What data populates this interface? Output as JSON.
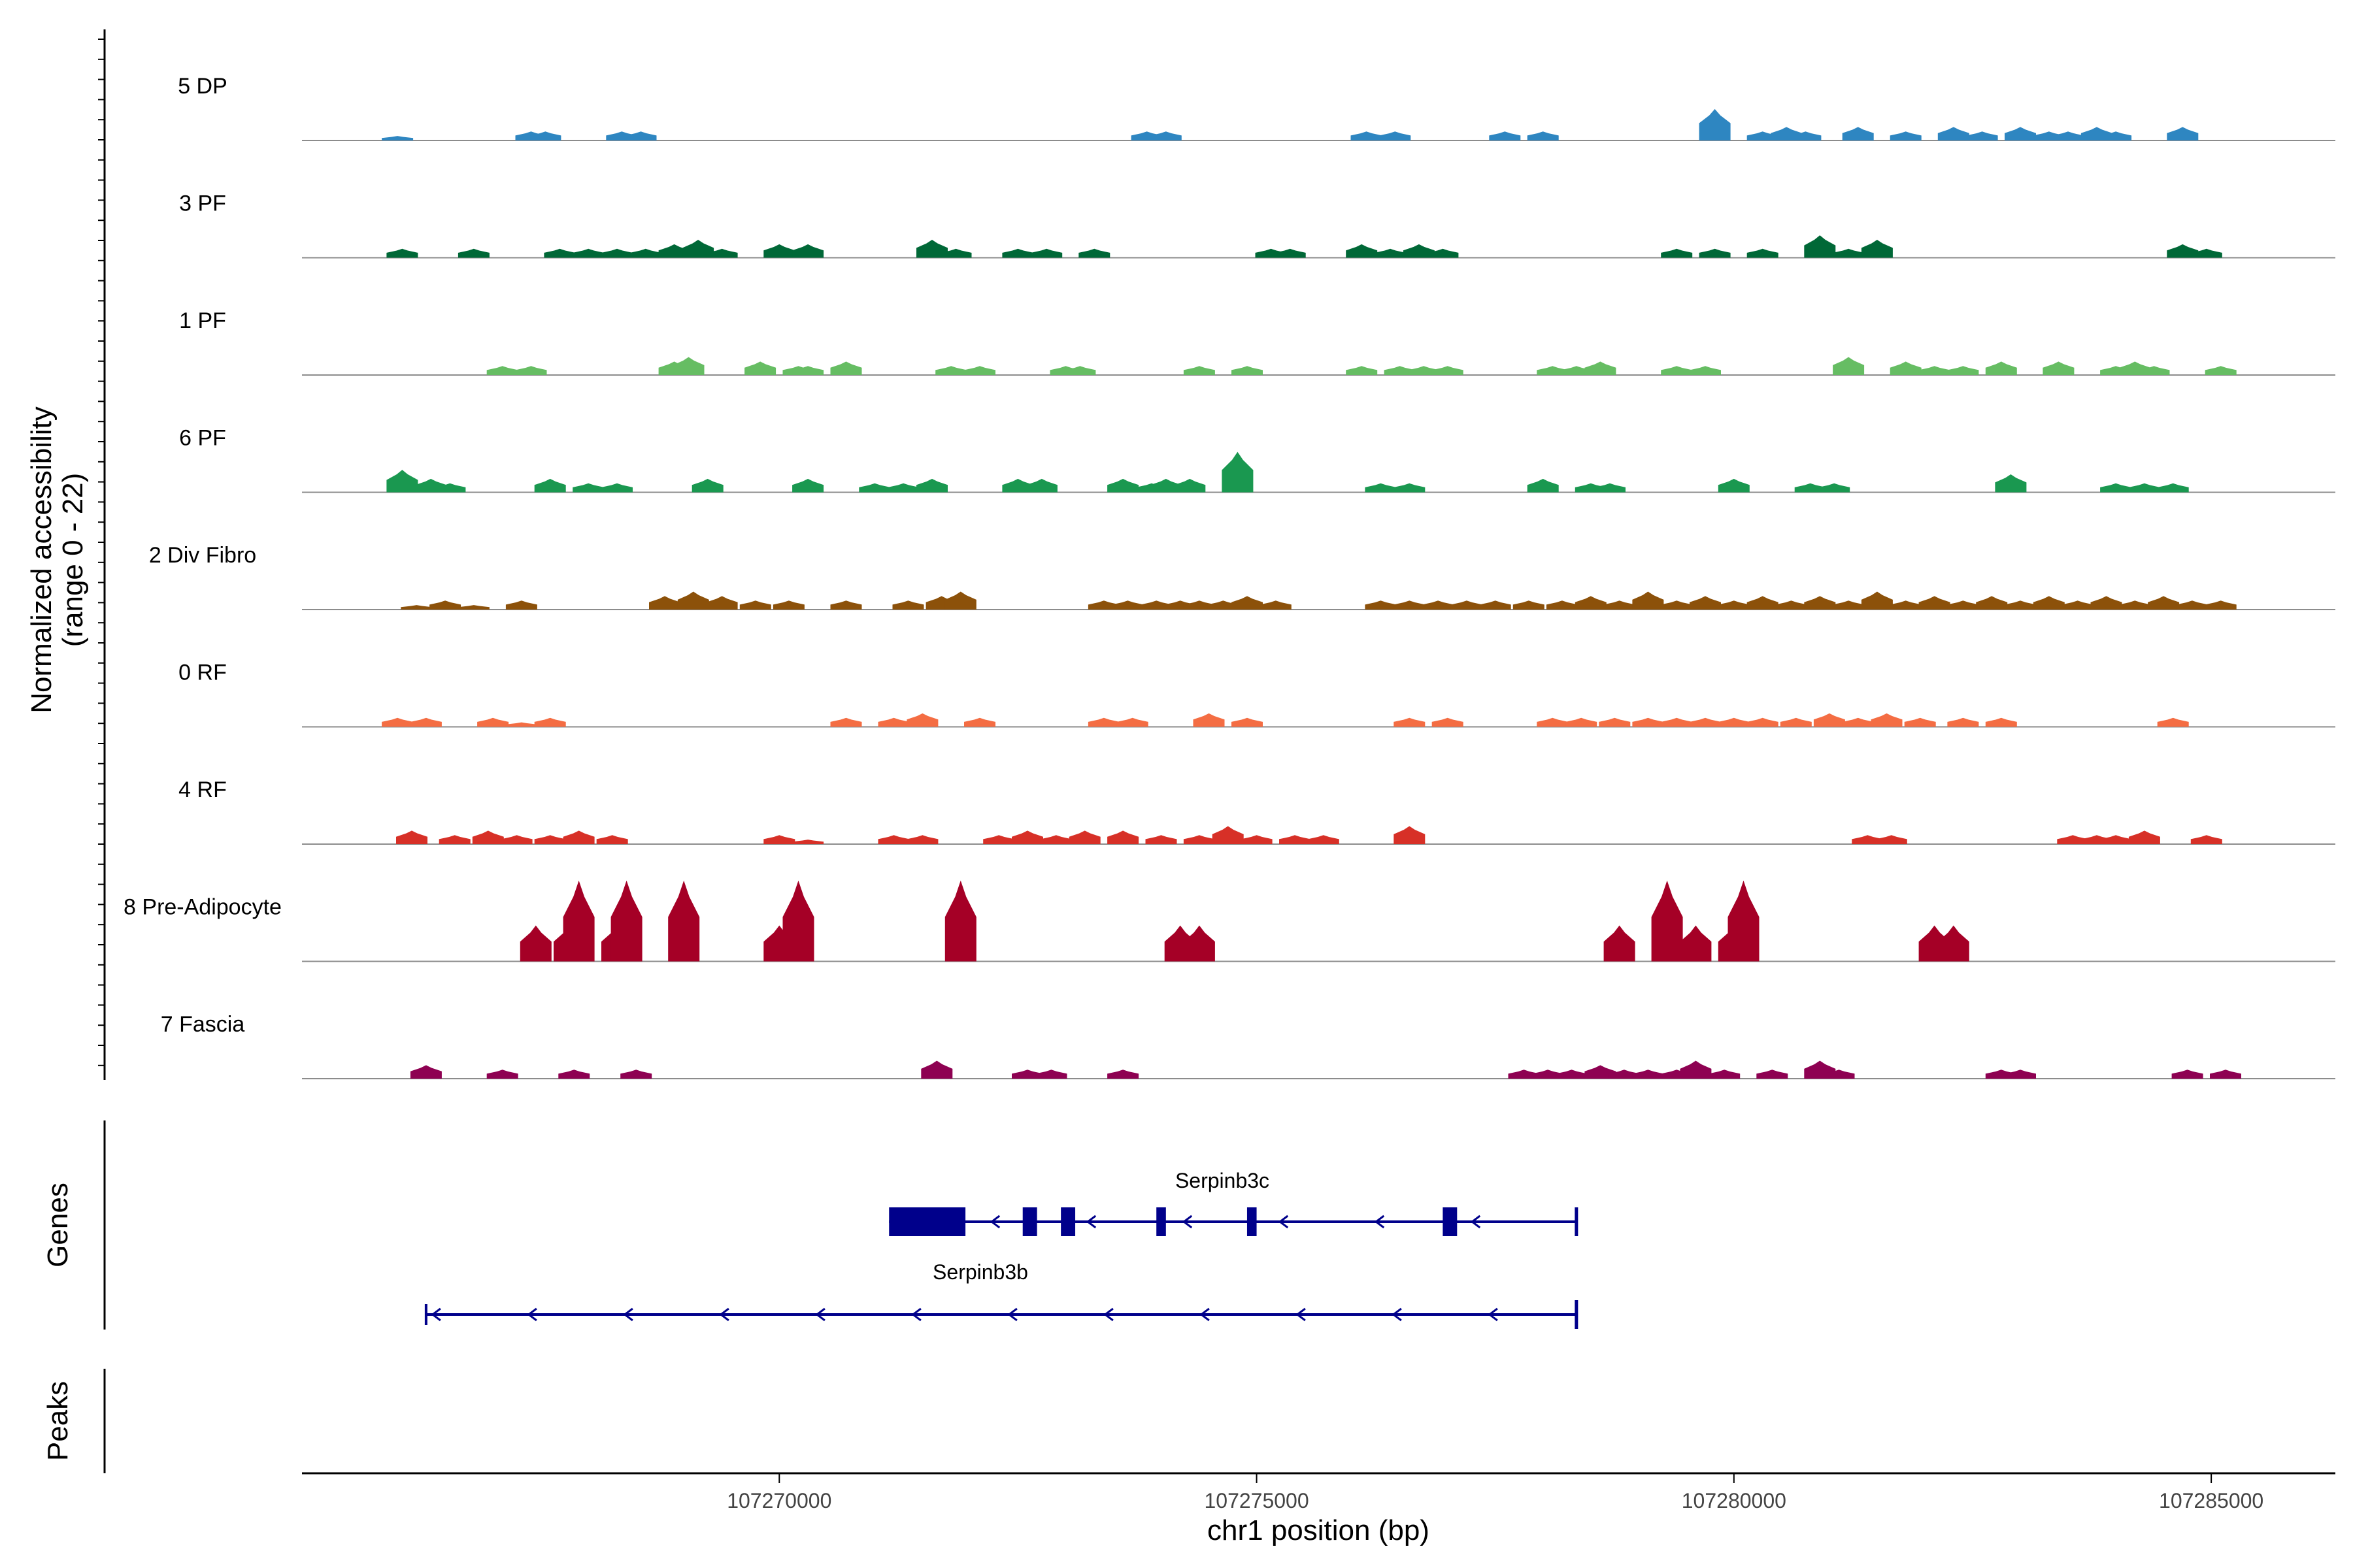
{
  "chart_data": {
    "type": "coverage",
    "y_axis_label_line1": "Normalized accessibility",
    "y_axis_label_line2": "(range 0 - 22)",
    "y_range": [
      0,
      22
    ],
    "x_axis_label": "chr1 position (bp)",
    "xlim": [
      107265000,
      107286300
    ],
    "x_ticks": [
      107270000,
      107275000,
      107280000,
      107285000
    ],
    "x_tick_labels": [
      "107270000",
      "107275000",
      "107280000",
      "107285000"
    ],
    "tracks": [
      {
        "name": "5 DP",
        "color": "#2E86C1",
        "peaks": [
          [
            107266000,
            1
          ],
          [
            107267400,
            2
          ],
          [
            107267550,
            2
          ],
          [
            107268350,
            2
          ],
          [
            107268550,
            2
          ],
          [
            107273850,
            2
          ],
          [
            107274050,
            2
          ],
          [
            107276150,
            2
          ],
          [
            107276450,
            2
          ],
          [
            107277600,
            2
          ],
          [
            107278000,
            2
          ],
          [
            107279800,
            7
          ],
          [
            107280300,
            2
          ],
          [
            107280550,
            3
          ],
          [
            107280750,
            2
          ],
          [
            107281300,
            3
          ],
          [
            107281800,
            2
          ],
          [
            107282300,
            3
          ],
          [
            107282600,
            2
          ],
          [
            107283000,
            3
          ],
          [
            107283300,
            2
          ],
          [
            107283500,
            2
          ],
          [
            107283800,
            3
          ],
          [
            107284000,
            2
          ],
          [
            107284700,
            3
          ]
        ]
      },
      {
        "name": "3 PF",
        "color": "#006837",
        "peaks": [
          [
            107266050,
            2
          ],
          [
            107266800,
            2
          ],
          [
            107267700,
            2
          ],
          [
            107268000,
            2
          ],
          [
            107268300,
            2
          ],
          [
            107268600,
            2
          ],
          [
            107268900,
            3
          ],
          [
            107269150,
            4
          ],
          [
            107269400,
            2
          ],
          [
            107270000,
            3
          ],
          [
            107270300,
            3
          ],
          [
            107271600,
            4
          ],
          [
            107271850,
            2
          ],
          [
            107272500,
            2
          ],
          [
            107272800,
            2
          ],
          [
            107273300,
            2
          ],
          [
            107275150,
            2
          ],
          [
            107275350,
            2
          ],
          [
            107276100,
            3
          ],
          [
            107276400,
            2
          ],
          [
            107276700,
            3
          ],
          [
            107276950,
            2
          ],
          [
            107279400,
            2
          ],
          [
            107279800,
            2
          ],
          [
            107280300,
            2
          ],
          [
            107280900,
            5
          ],
          [
            107281200,
            2
          ],
          [
            107281500,
            4
          ],
          [
            107284700,
            3
          ],
          [
            107284950,
            2
          ]
        ]
      },
      {
        "name": "1 PF",
        "color": "#66BD63",
        "peaks": [
          [
            107267100,
            2
          ],
          [
            107267400,
            2
          ],
          [
            107268900,
            3
          ],
          [
            107269050,
            4
          ],
          [
            107269800,
            3
          ],
          [
            107270200,
            2
          ],
          [
            107270300,
            2
          ],
          [
            107270700,
            3
          ],
          [
            107271800,
            2
          ],
          [
            107272100,
            2
          ],
          [
            107273000,
            2
          ],
          [
            107273150,
            2
          ],
          [
            107274400,
            2
          ],
          [
            107274900,
            2
          ],
          [
            107276100,
            2
          ],
          [
            107276500,
            2
          ],
          [
            107276750,
            2
          ],
          [
            107277000,
            2
          ],
          [
            107278100,
            2
          ],
          [
            107278350,
            2
          ],
          [
            107278600,
            3
          ],
          [
            107279400,
            2
          ],
          [
            107279700,
            2
          ],
          [
            107281200,
            4
          ],
          [
            107281800,
            3
          ],
          [
            107282100,
            2
          ],
          [
            107282400,
            2
          ],
          [
            107282800,
            3
          ],
          [
            107283400,
            3
          ],
          [
            107284000,
            2
          ],
          [
            107284200,
            3
          ],
          [
            107284400,
            2
          ],
          [
            107285100,
            2
          ]
        ]
      },
      {
        "name": "6 PF",
        "color": "#1A9850",
        "peaks": [
          [
            107266050,
            5
          ],
          [
            107266350,
            3
          ],
          [
            107266550,
            2
          ],
          [
            107267600,
            3
          ],
          [
            107268000,
            2
          ],
          [
            107268300,
            2
          ],
          [
            107269250,
            3
          ],
          [
            107270300,
            3
          ],
          [
            107271000,
            2
          ],
          [
            107271300,
            2
          ],
          [
            107271600,
            3
          ],
          [
            107272500,
            3
          ],
          [
            107272750,
            3
          ],
          [
            107273600,
            3
          ],
          [
            107273900,
            2
          ],
          [
            107274050,
            3
          ],
          [
            107274300,
            3
          ],
          [
            107274800,
            9
          ],
          [
            107276300,
            2
          ],
          [
            107276600,
            2
          ],
          [
            107278000,
            3
          ],
          [
            107278500,
            2
          ],
          [
            107278700,
            2
          ],
          [
            107280000,
            3
          ],
          [
            107280800,
            2
          ],
          [
            107281050,
            2
          ],
          [
            107282900,
            4
          ],
          [
            107284000,
            2
          ],
          [
            107284300,
            2
          ],
          [
            107284600,
            2
          ]
        ]
      },
      {
        "name": "2 Div Fibro",
        "color": "#8C510A",
        "peaks": [
          [
            107266200,
            1
          ],
          [
            107266500,
            2
          ],
          [
            107266800,
            1
          ],
          [
            107267300,
            2
          ],
          [
            107268800,
            3
          ],
          [
            107269100,
            4
          ],
          [
            107269400,
            3
          ],
          [
            107269750,
            2
          ],
          [
            107270100,
            2
          ],
          [
            107270700,
            2
          ],
          [
            107271350,
            2
          ],
          [
            107271700,
            3
          ],
          [
            107271900,
            4
          ],
          [
            107273400,
            2
          ],
          [
            107273650,
            2
          ],
          [
            107273950,
            2
          ],
          [
            107274200,
            2
          ],
          [
            107274400,
            2
          ],
          [
            107274650,
            2
          ],
          [
            107274900,
            3
          ],
          [
            107275200,
            2
          ],
          [
            107276300,
            2
          ],
          [
            107276600,
            2
          ],
          [
            107276900,
            2
          ],
          [
            107277200,
            2
          ],
          [
            107277500,
            2
          ],
          [
            107277850,
            2
          ],
          [
            107278200,
            2
          ],
          [
            107278500,
            3
          ],
          [
            107278800,
            2
          ],
          [
            107279100,
            4
          ],
          [
            107279400,
            2
          ],
          [
            107279700,
            3
          ],
          [
            107280000,
            2
          ],
          [
            107280300,
            3
          ],
          [
            107280600,
            2
          ],
          [
            107280900,
            3
          ],
          [
            107281200,
            2
          ],
          [
            107281500,
            4
          ],
          [
            107281800,
            2
          ],
          [
            107282100,
            3
          ],
          [
            107282400,
            2
          ],
          [
            107282700,
            3
          ],
          [
            107283000,
            2
          ],
          [
            107283300,
            3
          ],
          [
            107283600,
            2
          ],
          [
            107283900,
            3
          ],
          [
            107284200,
            2
          ],
          [
            107284500,
            3
          ],
          [
            107284800,
            2
          ],
          [
            107285100,
            2
          ]
        ]
      },
      {
        "name": "0 RF",
        "color": "#F46D43",
        "peaks": [
          [
            107266000,
            2
          ],
          [
            107266300,
            2
          ],
          [
            107267000,
            2
          ],
          [
            107267300,
            1
          ],
          [
            107267600,
            2
          ],
          [
            107270700,
            2
          ],
          [
            107271200,
            2
          ],
          [
            107271500,
            3
          ],
          [
            107272100,
            2
          ],
          [
            107273400,
            2
          ],
          [
            107273700,
            2
          ],
          [
            107274500,
            3
          ],
          [
            107274900,
            2
          ],
          [
            107276600,
            2
          ],
          [
            107277000,
            2
          ],
          [
            107278100,
            2
          ],
          [
            107278400,
            2
          ],
          [
            107278750,
            2
          ],
          [
            107279100,
            2
          ],
          [
            107279400,
            2
          ],
          [
            107279700,
            2
          ],
          [
            107280000,
            2
          ],
          [
            107280300,
            2
          ],
          [
            107280650,
            2
          ],
          [
            107281000,
            3
          ],
          [
            107281300,
            2
          ],
          [
            107281600,
            3
          ],
          [
            107281950,
            2
          ],
          [
            107282400,
            2
          ],
          [
            107282800,
            2
          ],
          [
            107284600,
            2
          ]
        ]
      },
      {
        "name": "4 RF",
        "color": "#D73027",
        "peaks": [
          [
            107266150,
            3
          ],
          [
            107266600,
            2
          ],
          [
            107266950,
            3
          ],
          [
            107267250,
            2
          ],
          [
            107267600,
            2
          ],
          [
            107267900,
            3
          ],
          [
            107268250,
            2
          ],
          [
            107270000,
            2
          ],
          [
            107270300,
            1
          ],
          [
            107271200,
            2
          ],
          [
            107271500,
            2
          ],
          [
            107272300,
            2
          ],
          [
            107272600,
            3
          ],
          [
            107272900,
            2
          ],
          [
            107273200,
            3
          ],
          [
            107273600,
            3
          ],
          [
            107274000,
            2
          ],
          [
            107274400,
            2
          ],
          [
            107274700,
            4
          ],
          [
            107275000,
            2
          ],
          [
            107275400,
            2
          ],
          [
            107275700,
            2
          ],
          [
            107276600,
            4
          ],
          [
            107281400,
            2
          ],
          [
            107281650,
            2
          ],
          [
            107283550,
            2
          ],
          [
            107283800,
            2
          ],
          [
            107284000,
            2
          ],
          [
            107284300,
            3
          ],
          [
            107284950,
            2
          ]
        ]
      },
      {
        "name": "8 Pre-Adipocyte",
        "color": "#A50026",
        "peaks": [
          [
            107267450,
            8
          ],
          [
            107267800,
            8
          ],
          [
            107267900,
            18
          ],
          [
            107268300,
            8
          ],
          [
            107268400,
            18
          ],
          [
            107269000,
            18
          ],
          [
            107270000,
            8
          ],
          [
            107270200,
            18
          ],
          [
            107271900,
            18
          ],
          [
            107274200,
            8
          ],
          [
            107274400,
            8
          ],
          [
            107278800,
            8
          ],
          [
            107279300,
            18
          ],
          [
            107279600,
            8
          ],
          [
            107280000,
            8
          ],
          [
            107280100,
            18
          ],
          [
            107282100,
            8
          ],
          [
            107282300,
            8
          ]
        ]
      },
      {
        "name": "7 Fascia",
        "color": "#8E0152",
        "peaks": [
          [
            107266300,
            3
          ],
          [
            107267100,
            2
          ],
          [
            107267850,
            2
          ],
          [
            107268500,
            2
          ],
          [
            107271650,
            4
          ],
          [
            107272600,
            2
          ],
          [
            107272850,
            2
          ],
          [
            107273600,
            2
          ],
          [
            107277800,
            2
          ],
          [
            107278050,
            2
          ],
          [
            107278300,
            2
          ],
          [
            107278600,
            3
          ],
          [
            107278850,
            2
          ],
          [
            107279100,
            2
          ],
          [
            107279400,
            2
          ],
          [
            107279600,
            4
          ],
          [
            107279900,
            2
          ],
          [
            107280400,
            2
          ],
          [
            107280900,
            4
          ],
          [
            107281100,
            2
          ],
          [
            107282800,
            2
          ],
          [
            107283000,
            2
          ],
          [
            107284750,
            2
          ],
          [
            107285150,
            2
          ]
        ]
      }
    ],
    "genes": [
      {
        "name": "Serpinb3c",
        "color": "#00008B",
        "strand": "-",
        "start": 107271150,
        "end": 107278350,
        "exons": [
          [
            107271150,
            107271950
          ],
          [
            107272550,
            107272700
          ],
          [
            107272950,
            107273100
          ],
          [
            107273950,
            107274050
          ],
          [
            107274900,
            107275000
          ],
          [
            107276950,
            107277100
          ]
        ]
      },
      {
        "name": "Serpinb3b",
        "color": "#00008B",
        "strand": "-",
        "start": 107266300,
        "end": 107278350,
        "exons": []
      }
    ],
    "panels": [
      "Genes",
      "Peaks"
    ]
  }
}
